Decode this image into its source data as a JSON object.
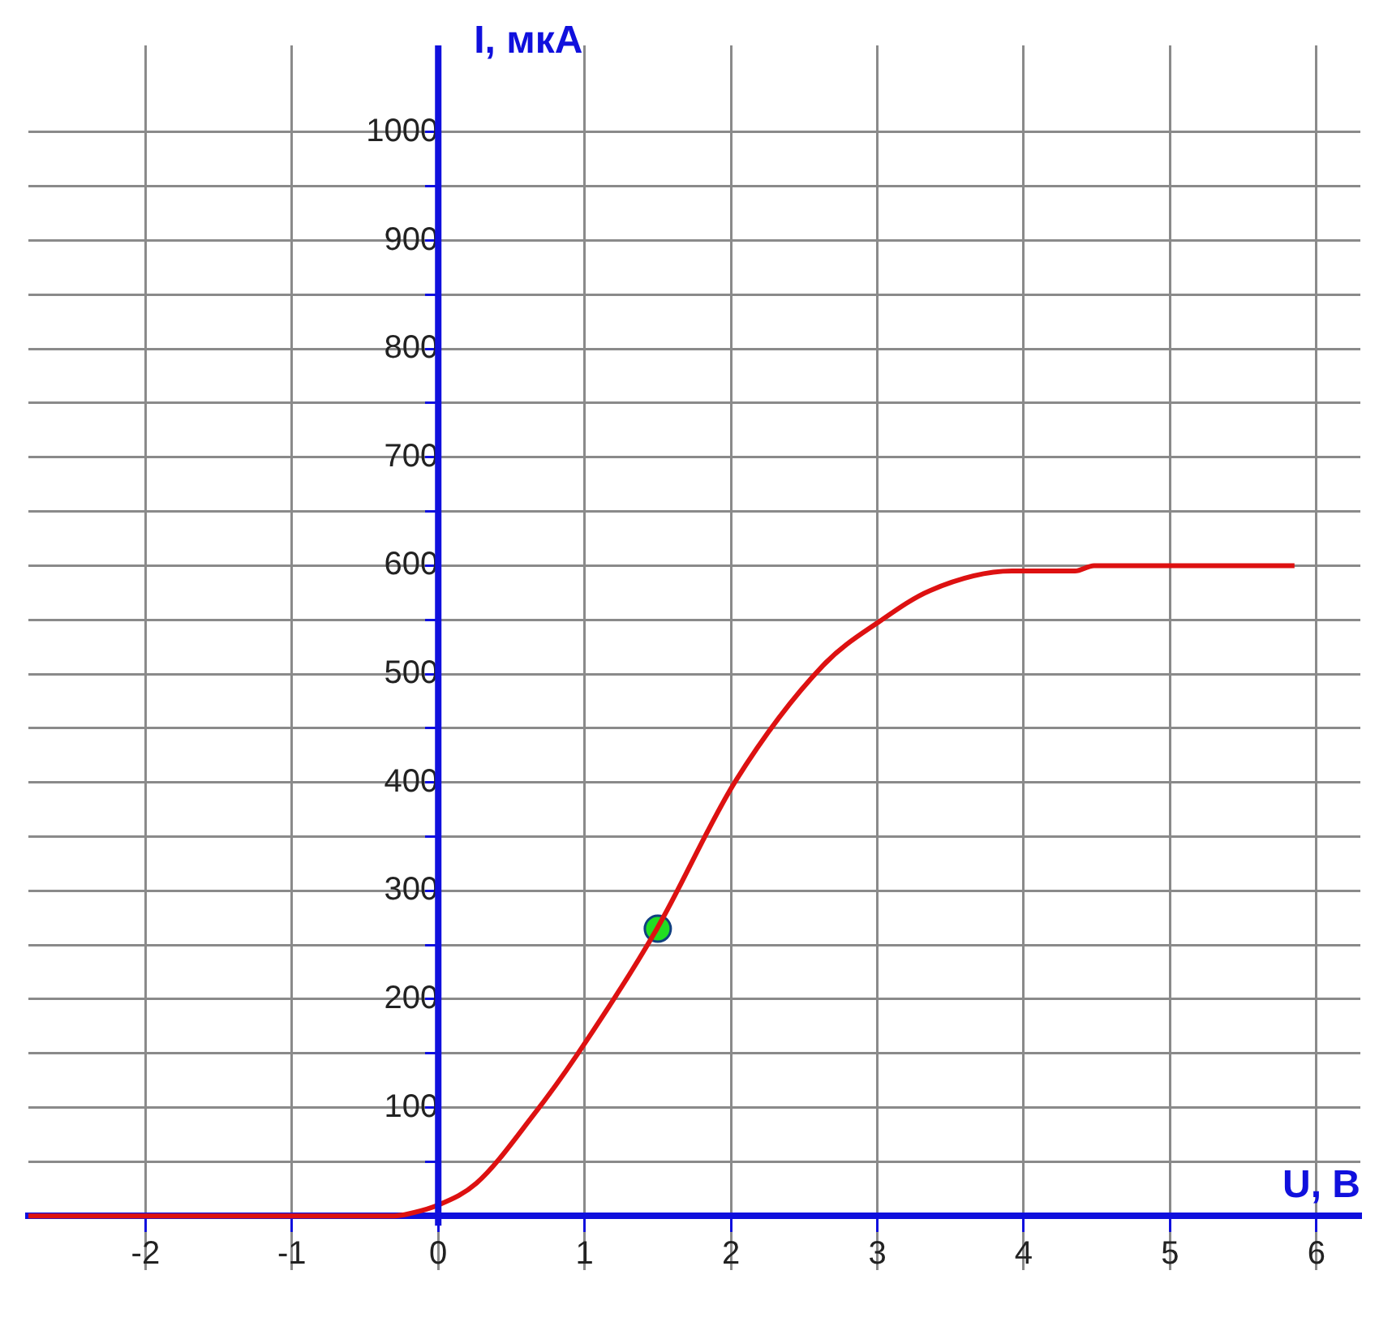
{
  "chart_data": {
    "type": "line",
    "xlabel": "U, В",
    "ylabel": "I, мкА",
    "x": [
      -2.8,
      -0.3,
      -0.2,
      0,
      0.26,
      0.65,
      0.95,
      1.49,
      2.03,
      2.63,
      3.02,
      3.36,
      3.92,
      4.35,
      4.48,
      5.85
    ],
    "series": [
      {
        "type": "line",
        "marker": "none",
        "color": "#dd1111",
        "values": [
          0,
          0,
          2,
          10,
          30,
          93,
          149,
          264,
          401,
          508,
          549,
          577,
          595,
          595,
          600,
          600
        ]
      },
      {
        "type": "scatter",
        "color": "#22dd22",
        "marker": "circle",
        "x": [
          1.5
        ],
        "values": [
          265
        ]
      }
    ],
    "xlim": [
      -2.8,
      6.3
    ],
    "ylim": [
      -50,
      1080
    ],
    "xticks": [
      -2,
      -1,
      0,
      1,
      2,
      3,
      4,
      5,
      6
    ],
    "yticks": [
      {
        "value": 0,
        "label": null
      },
      {
        "value": 50,
        "label": null
      },
      100,
      {
        "value": 150,
        "label": null
      },
      200,
      {
        "value": 250,
        "label": null
      },
      300,
      {
        "value": 350,
        "label": null
      },
      400,
      {
        "value": 450,
        "label": null
      },
      500,
      {
        "value": 550,
        "label": null
      },
      600,
      {
        "value": 650,
        "label": null
      },
      700,
      {
        "value": 750,
        "label": null
      },
      800,
      {
        "value": 850,
        "label": null
      },
      900,
      {
        "value": 950,
        "label": null
      },
      1000
    ],
    "grid": true,
    "legend": false,
    "line_style": "solid"
  }
}
